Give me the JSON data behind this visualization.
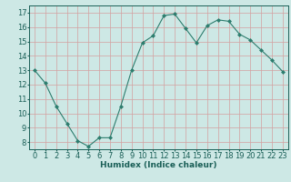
{
  "x": [
    0,
    1,
    2,
    3,
    4,
    5,
    6,
    7,
    8,
    9,
    10,
    11,
    12,
    13,
    14,
    15,
    16,
    17,
    18,
    19,
    20,
    21,
    22,
    23
  ],
  "y": [
    13.0,
    12.1,
    10.5,
    9.3,
    8.1,
    7.7,
    8.3,
    8.3,
    10.5,
    13.0,
    14.9,
    15.4,
    16.8,
    16.9,
    15.9,
    14.9,
    16.1,
    16.5,
    16.4,
    15.5,
    15.1,
    14.4,
    13.7,
    12.9
  ],
  "line_color": "#2d7d6e",
  "marker": "D",
  "marker_size": 2,
  "bg_color": "#cde8e5",
  "grid_color": "#b0d4d0",
  "axis_color": "#1a5f57",
  "xlabel": "Humidex (Indice chaleur)",
  "ylim": [
    7.5,
    17.5
  ],
  "yticks": [
    8,
    9,
    10,
    11,
    12,
    13,
    14,
    15,
    16,
    17
  ],
  "xlim": [
    -0.5,
    23.5
  ],
  "xticks": [
    0,
    1,
    2,
    3,
    4,
    5,
    6,
    7,
    8,
    9,
    10,
    11,
    12,
    13,
    14,
    15,
    16,
    17,
    18,
    19,
    20,
    21,
    22,
    23
  ],
  "xlabel_fontsize": 6.5,
  "tick_fontsize": 6.0
}
